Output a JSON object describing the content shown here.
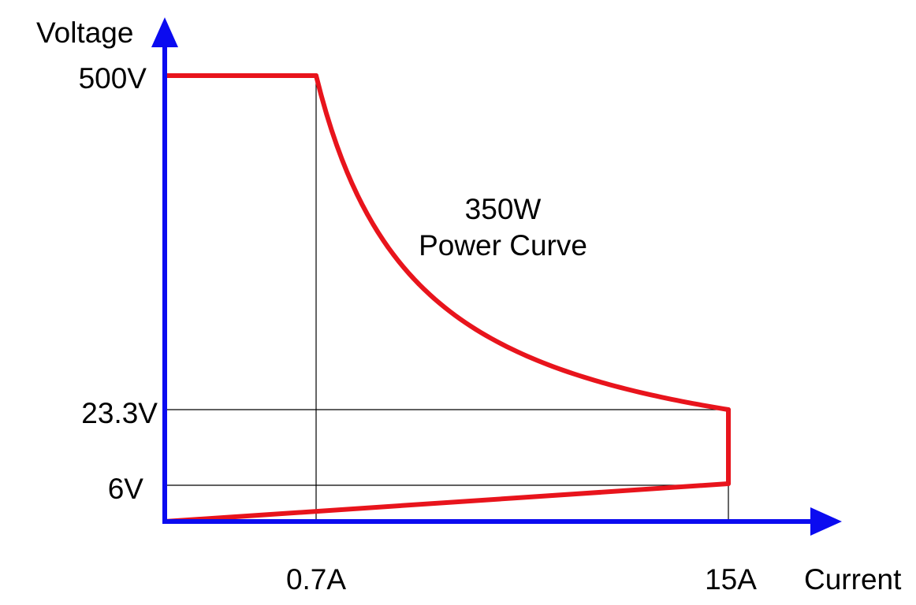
{
  "axes": {
    "y_label": "Voltage",
    "x_label": "Current",
    "color": "#0b0bf0"
  },
  "y_ticks": [
    "500V",
    "23.3V",
    "6V"
  ],
  "x_ticks": [
    "0.7A",
    "15A"
  ],
  "annotation": {
    "line1": "350W",
    "line2": "Power Curve"
  },
  "curve": {
    "color": "#e8141c",
    "power_w": 350,
    "v_max": 500,
    "v_knee": 23.3,
    "v_min": 6,
    "i_knee": 0.7,
    "i_max": 15
  }
}
